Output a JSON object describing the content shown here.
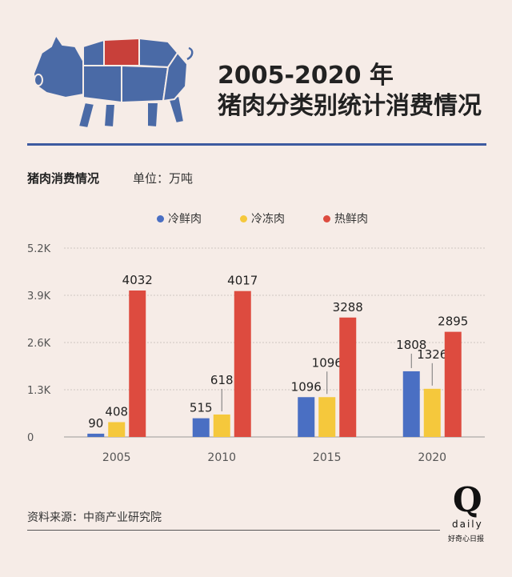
{
  "header": {
    "title_line1": "2005-2020 年",
    "title_line2": "猪肉分类别统计消费情况"
  },
  "icons": {
    "pig": "pig-meat-cuts-icon"
  },
  "colors": {
    "blue": "#4a6fc3",
    "yellow": "#f5c83c",
    "red": "#dd4b3f",
    "accent": "#3d5aa0"
  },
  "subtitle": "猪肉消费情况",
  "unit": "单位：万吨",
  "chart_data": {
    "type": "bar",
    "categories": [
      "2005",
      "2010",
      "2015",
      "2020"
    ],
    "series": [
      {
        "name": "冷鲜肉",
        "color": "#4a6fc3",
        "values": [
          90,
          515,
          1096,
          1808
        ]
      },
      {
        "name": "冷冻肉",
        "color": "#f5c83c",
        "values": [
          408,
          618,
          1096,
          1326
        ]
      },
      {
        "name": "热鲜肉",
        "color": "#dd4b3f",
        "values": [
          4032,
          4017,
          3288,
          2895
        ]
      }
    ],
    "yticks": [
      "0",
      "1.3K",
      "2.6K",
      "3.9K",
      "5.2K"
    ],
    "ytick_values": [
      0,
      1300,
      2600,
      3900,
      5200
    ],
    "ylim": [
      0,
      5200
    ],
    "legend_position": "top-center",
    "grid": true
  },
  "source": "资料来源：中商产业研究院",
  "logo": {
    "mark": "Q",
    "word": "daily",
    "sub": "好奇心日报"
  }
}
